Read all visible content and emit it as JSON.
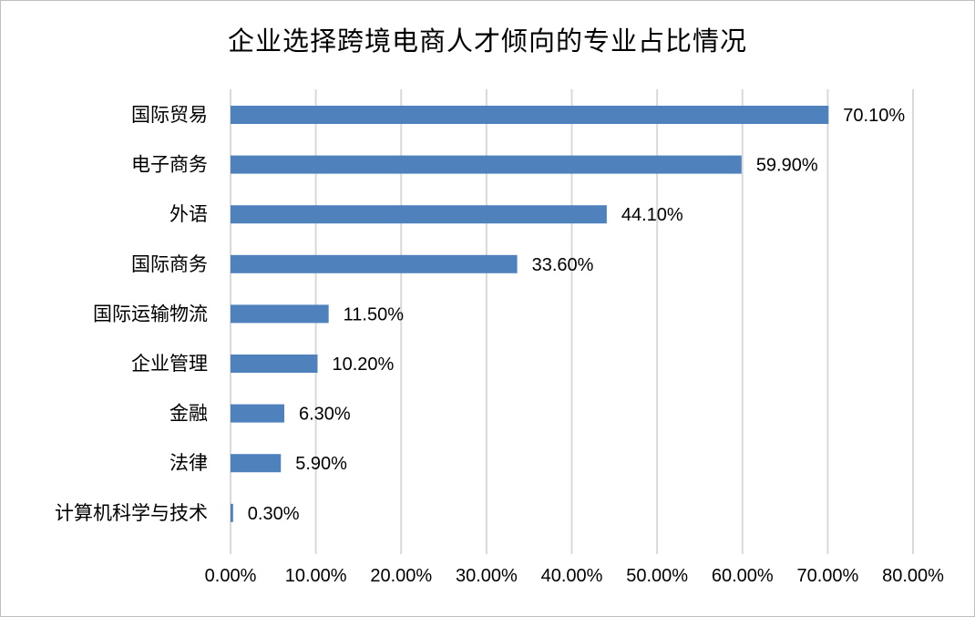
{
  "chart_data": {
    "type": "bar",
    "orientation": "horizontal",
    "title": "企业选择跨境电商人才倾向的专业占比情况",
    "categories": [
      "国际贸易",
      "电子商务",
      "外语",
      "国际商务",
      "国际运输物流",
      "企业管理",
      "金融",
      "法律",
      "计算机科学与技术"
    ],
    "values": [
      70.1,
      59.9,
      44.1,
      33.6,
      11.5,
      10.2,
      6.3,
      5.9,
      0.3
    ],
    "data_labels": [
      "70.10%",
      "59.90%",
      "44.10%",
      "33.60%",
      "11.50%",
      "10.20%",
      "6.30%",
      "5.90%",
      "0.30%"
    ],
    "xlim": [
      0,
      80
    ],
    "xticks": [
      0,
      10,
      20,
      30,
      40,
      50,
      60,
      70,
      80
    ],
    "xtick_labels": [
      "0.00%",
      "10.00%",
      "20.00%",
      "30.00%",
      "40.00%",
      "50.00%",
      "60.00%",
      "70.00%",
      "80.00%"
    ],
    "xlabel": "",
    "ylabel": "",
    "grid": "vertical",
    "legend": "none",
    "bar_color": "#4f81bd",
    "grid_color": "#d9d9d9"
  }
}
